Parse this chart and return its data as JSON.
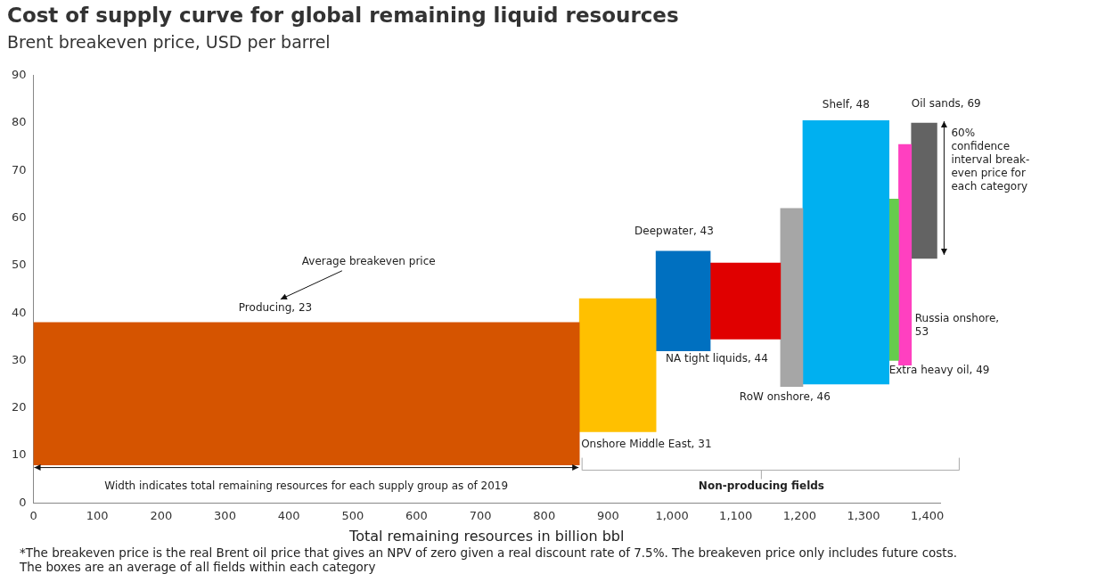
{
  "chart_data": {
    "type": "histogram",
    "title": "Cost of supply curve for global remaining liquid resources",
    "subtitle": "Brent breakeven price, USD per barrel",
    "xlabel": "Total remaining resources in billion bbl",
    "bins": [
      0,
      855,
      975,
      1060,
      1170,
      1205,
      1340,
      1355,
      1375,
      1415
    ],
    "base": [
      8,
      15,
      32,
      34.5,
      24.5,
      25,
      30,
      29,
      51.5
    ],
    "values": [
      30,
      28,
      21,
      16,
      37.5,
      55.5,
      34,
      46.5,
      28.5
    ],
    "colors": [
      "#d55400",
      "#ffc000",
      "#0070c0",
      "#e00000",
      "#a6a6a6",
      "#00b0f0",
      "#66cc4d",
      "#ff40c0",
      "#636363"
    ],
    "xlim": [
      0,
      1420
    ],
    "xticks": [
      0,
      100,
      200,
      300,
      400,
      500,
      600,
      700,
      800,
      900,
      {
        "value": 1000,
        "label": "1,000"
      },
      {
        "value": 1100,
        "label": "1,100"
      },
      {
        "value": 1200,
        "label": "1,200"
      },
      {
        "value": 1300,
        "label": "1,300"
      },
      {
        "value": 1400,
        "label": "1,400"
      }
    ],
    "ylim": [
      0,
      90
    ],
    "yticks": [
      0,
      10,
      20,
      30,
      40,
      50,
      60,
      70,
      80,
      90
    ],
    "annotations": [
      "Producing, 23",
      "Average breakeven price",
      "Onshore Middle East, 31",
      "Deepwater, 43",
      "NA tight liquids, 44",
      "RoW onshore, 46",
      "Shelf, 48",
      "Oil sands, 69",
      "60% confidence interval break-even price for each category",
      "Russia onshore, 53",
      "Extra heavy oil, 49",
      "Width indicates total remaining resources for each supply group as of 2019",
      "Non-producing fields",
      "*The breakeven price is the real Brent oil price that gives an NPV of zero given a real discount rate of 7.5%. The breakeven price only includes future costs. The boxes are an average of all fields within each category"
    ]
  }
}
